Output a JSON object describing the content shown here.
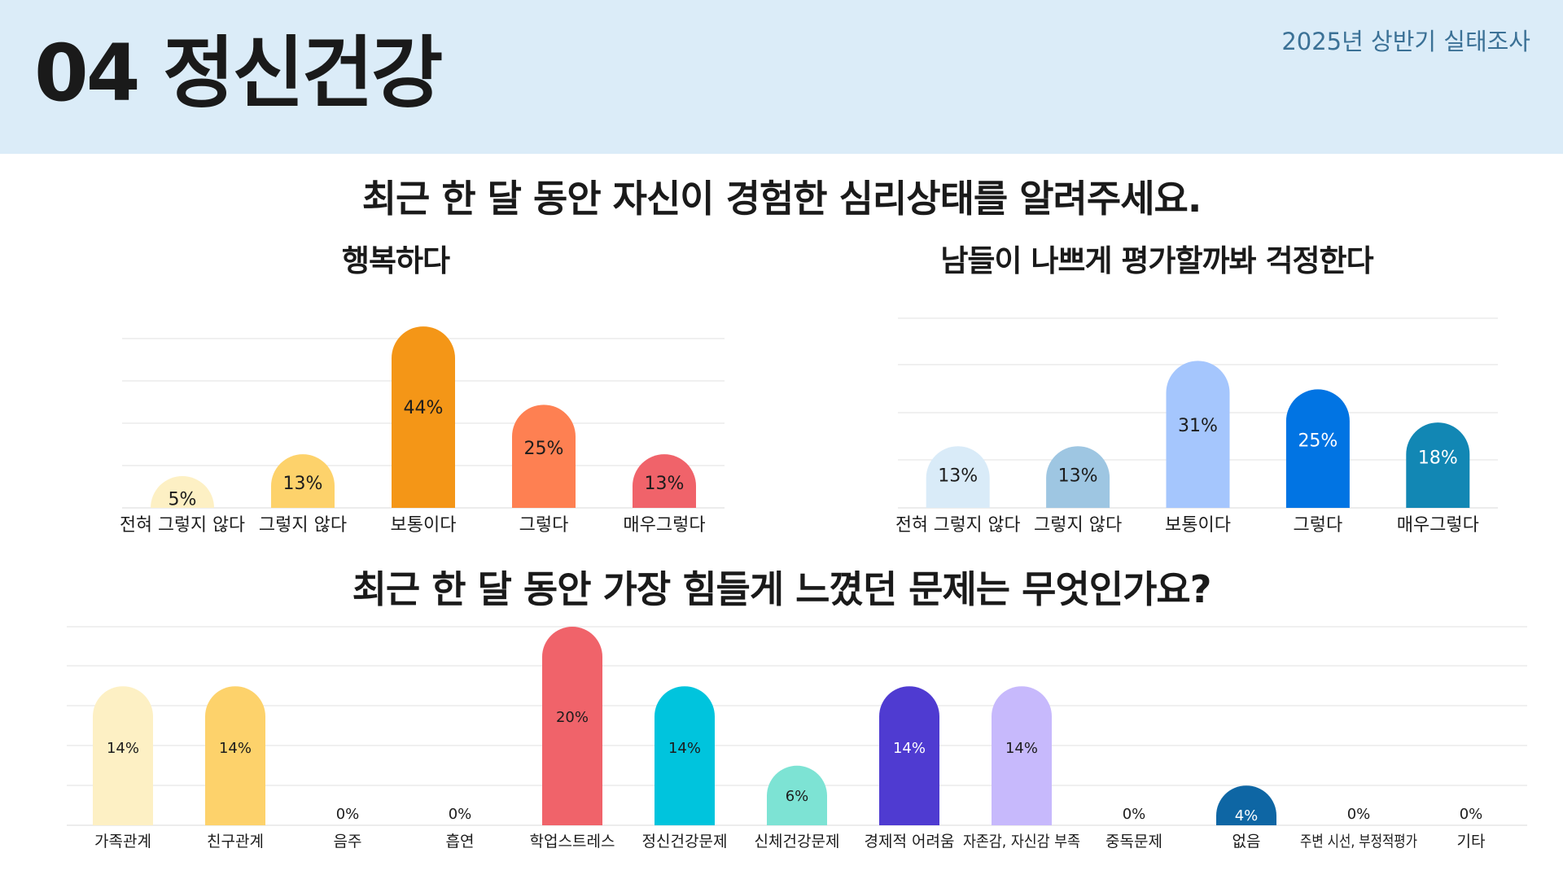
{
  "header": {
    "title": "04 정신건강",
    "survey_tag": "2025년 상반기 실태조사"
  },
  "question1": {
    "title": "최근 한 달 동안 자신이 경험한 심리상태를 알려주세요."
  },
  "question2": {
    "title": "최근 한 달 동안 가장 힘들게 느꼈던 문제는 무엇인가요?"
  },
  "chart_data": [
    {
      "type": "bar",
      "title": "행복하다",
      "categories": [
        "전혀 그렇지 않다",
        "그렇지 않다",
        "보통이다",
        "그렇다",
        "매우그렇다"
      ],
      "values": [
        5,
        13,
        44,
        25,
        13
      ],
      "value_labels": [
        "5%",
        "13%",
        "44%",
        "25%",
        "13%"
      ],
      "colors": [
        "#fdf0c4",
        "#fdd26b",
        "#f49617",
        "#fe8052",
        "#f0636a"
      ],
      "ylim": [
        0,
        45
      ],
      "grid": true,
      "legend": "none"
    },
    {
      "type": "bar",
      "title": "남들이 나쁘게 평가할까봐 걱정한다",
      "categories": [
        "전혀 그렇지 않다",
        "그렇지 않다",
        "보통이다",
        "그렇다",
        "매우그렇다"
      ],
      "values": [
        13,
        13,
        31,
        25,
        18
      ],
      "value_labels": [
        "13%",
        "13%",
        "31%",
        "25%",
        "18%"
      ],
      "colors": [
        "#d9ebf8",
        "#9ec6e2",
        "#a5c6fd",
        "#0174e3",
        "#1287b4"
      ],
      "ylim": [
        0,
        40
      ],
      "grid": true,
      "legend": "none"
    },
    {
      "type": "bar",
      "title": "최근 한 달 동안 가장 힘들게 느꼈던 문제는 무엇인가요?",
      "categories": [
        "가족관계",
        "친구관계",
        "음주",
        "흡연",
        "학업스트레스",
        "정신건강문제",
        "신체건강문제",
        "경제적 어려움",
        "자존감, 자신감 부족",
        "중독문제",
        "없음",
        "주변 시선, 부정적평가",
        "기타"
      ],
      "values": [
        14,
        14,
        0,
        0,
        20,
        14,
        6,
        14,
        14,
        0,
        4,
        0,
        0
      ],
      "value_labels": [
        "14%",
        "14%",
        "0%",
        "0%",
        "20%",
        "14%",
        "6%",
        "14%",
        "14%",
        "0%",
        "4%",
        "0%",
        "0%"
      ],
      "colors": [
        "#fdf0c4",
        "#fdd26b",
        "#f49617",
        "#fe8052",
        "#f0636a",
        "#00c4dd",
        "#7de3d4",
        "#4f3bd1",
        "#c7b9fc",
        "#9ec6e2",
        "#0e66a4",
        "#a5c6fd",
        "#1287b4"
      ],
      "ylim": [
        0,
        20
      ],
      "grid": true,
      "legend": "none"
    }
  ]
}
